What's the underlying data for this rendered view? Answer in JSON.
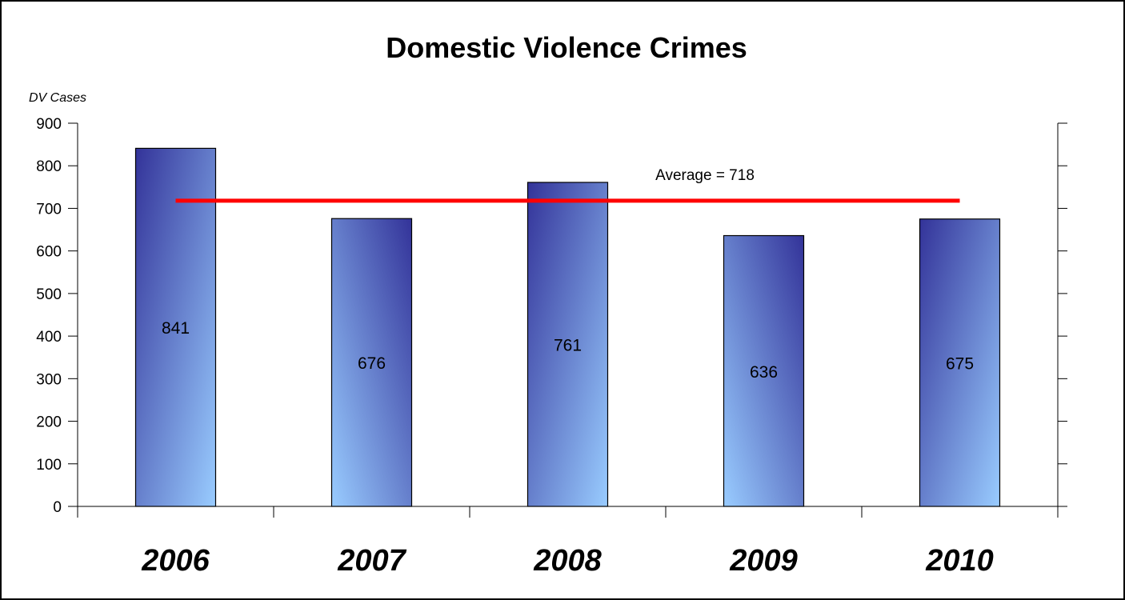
{
  "chart_data": {
    "type": "bar",
    "title": "Domestic Violence Crimes",
    "ylabel": "DV Cases",
    "xlabel": "",
    "categories": [
      "2006",
      "2007",
      "2008",
      "2009",
      "2010"
    ],
    "values": [
      841,
      676,
      761,
      636,
      675
    ],
    "data_labels": [
      "841",
      "676",
      "761",
      "636",
      "675"
    ],
    "ylim": [
      0,
      900
    ],
    "yticks": [
      0,
      100,
      200,
      300,
      400,
      500,
      600,
      700,
      800,
      900
    ],
    "grid": false,
    "average": {
      "value": 718,
      "label": "Average = 718",
      "color": "#ff0000"
    },
    "bar_gradient": {
      "light": "#99ccff",
      "dark": "#333399"
    }
  }
}
